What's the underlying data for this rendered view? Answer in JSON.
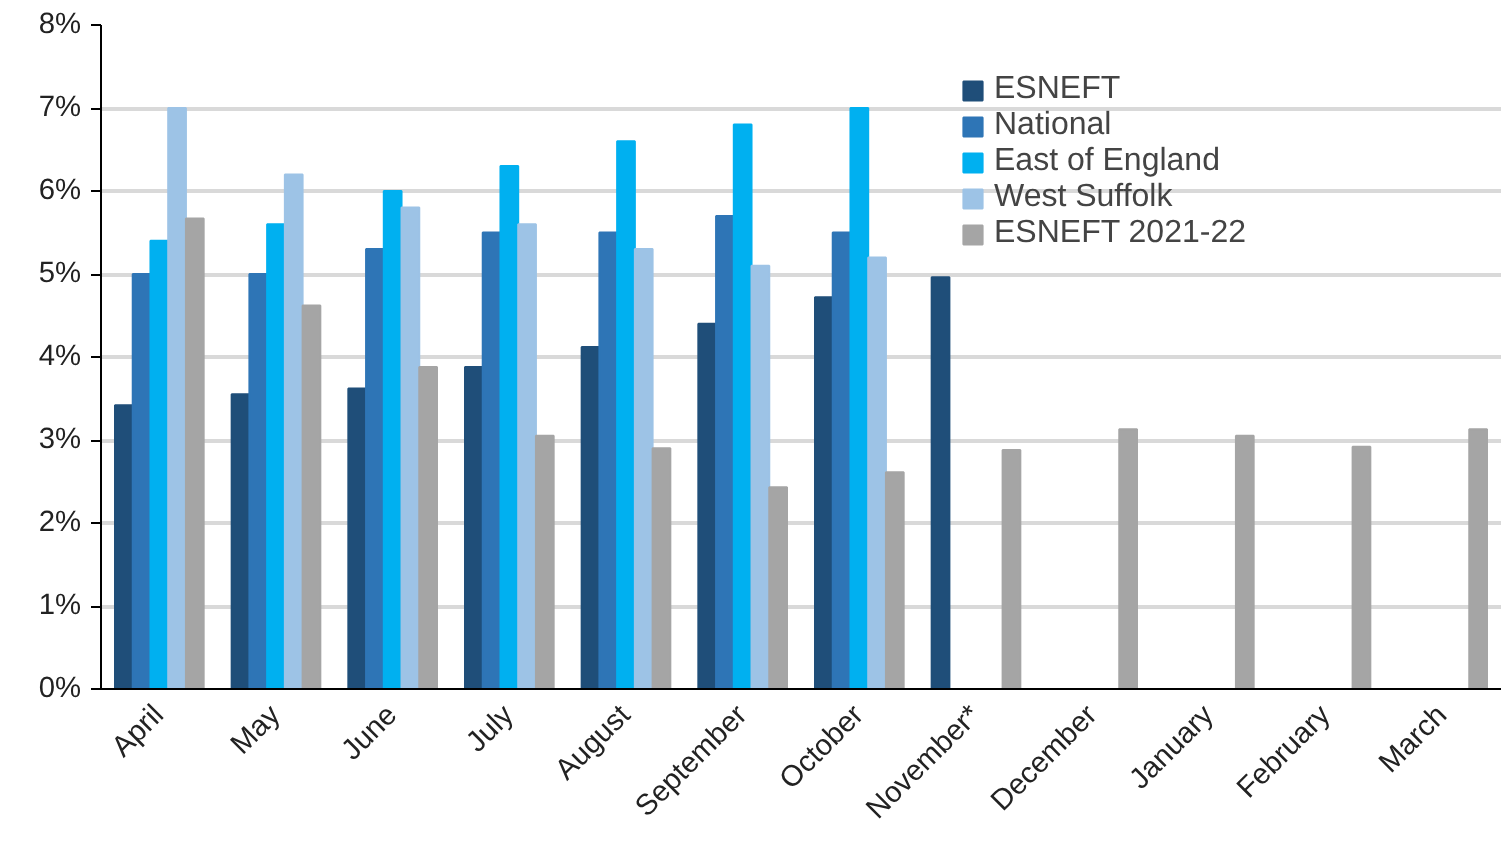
{
  "chart_data": {
    "type": "bar",
    "categories": [
      "April",
      "May",
      "June",
      "July",
      "August",
      "September",
      "October",
      "November*",
      "December",
      "January",
      "February",
      "March"
    ],
    "series": [
      {
        "name": "ESNEFT",
        "color": "#1f4e79",
        "values": [
          3.42,
          3.55,
          3.62,
          3.88,
          4.12,
          4.4,
          4.72,
          4.96,
          null,
          null,
          null,
          null
        ]
      },
      {
        "name": "National",
        "color": "#2e75b6",
        "values": [
          5.0,
          5.0,
          5.3,
          5.5,
          5.5,
          5.7,
          5.5,
          null,
          null,
          null,
          null,
          null
        ]
      },
      {
        "name": "East of England",
        "color": "#00b0f0",
        "values": [
          5.4,
          5.6,
          6.0,
          6.3,
          6.6,
          6.8,
          7.0,
          null,
          null,
          null,
          null,
          null
        ]
      },
      {
        "name": "West Suffolk",
        "color": "#9dc3e6",
        "values": [
          7.0,
          6.2,
          5.8,
          5.6,
          5.3,
          5.1,
          5.2,
          null,
          null,
          null,
          null,
          null
        ]
      },
      {
        "name": "ESNEFT 2021-22",
        "color": "#a5a5a5",
        "values": [
          5.67,
          4.62,
          3.88,
          3.05,
          2.9,
          2.43,
          2.61,
          2.88,
          3.13,
          3.05,
          2.92,
          3.13
        ]
      }
    ],
    "ylim": [
      0,
      8
    ],
    "yticks": [
      {
        "value": 0,
        "label": "0%"
      },
      {
        "value": 1,
        "label": "1%"
      },
      {
        "value": 2,
        "label": "2%"
      },
      {
        "value": 3,
        "label": "3%"
      },
      {
        "value": 4,
        "label": "4%"
      },
      {
        "value": 5,
        "label": "5%"
      },
      {
        "value": 6,
        "label": "6%"
      },
      {
        "value": 7,
        "label": "7%"
      },
      {
        "value": 8,
        "label": "8%"
      }
    ],
    "grid": "y",
    "legend": "top right"
  }
}
